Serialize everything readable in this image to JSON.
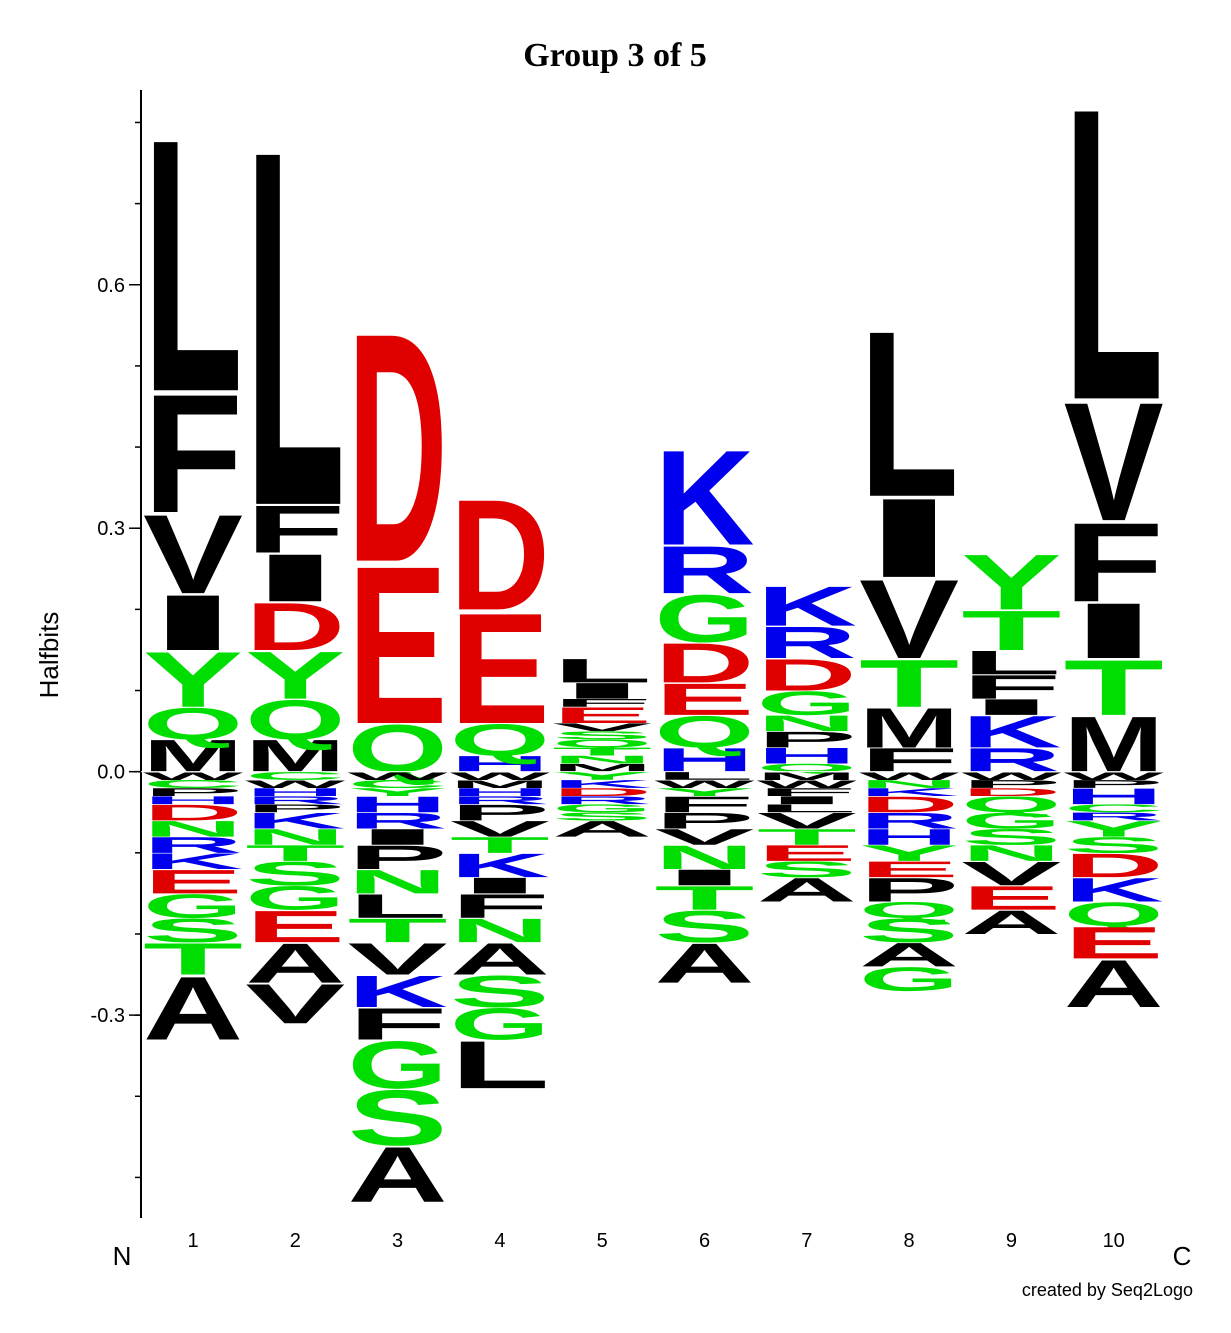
{
  "chart_data": {
    "type": "sequence-logo",
    "title": "Group 3 of 5",
    "ylabel": "Halfbits",
    "ylim": [
      -0.55,
      0.84
    ],
    "yticks": [
      {
        "value": -0.3,
        "label": "-0.3"
      },
      {
        "value": 0.0,
        "label": "0.0"
      },
      {
        "value": 0.3,
        "label": "0.3"
      },
      {
        "value": 0.6,
        "label": "0.6"
      }
    ],
    "yminor_step": 0.1,
    "n_label": "N",
    "c_label": "C",
    "credit": "created by Seq2Logo",
    "colors": {
      "hydrophobic": "#000000",
      "polar": "#00dd00",
      "acidic": "#e00000",
      "basic": "#0000ee"
    },
    "color_groups": {
      "hydrophobic": [
        "A",
        "V",
        "L",
        "I",
        "M",
        "F",
        "W",
        "P"
      ],
      "polar": [
        "G",
        "S",
        "T",
        "Y",
        "C",
        "N",
        "Q"
      ],
      "acidic": [
        "D",
        "E"
      ],
      "basic": [
        "K",
        "R",
        "H"
      ]
    },
    "positions": [
      {
        "label": "1",
        "pos": [
          [
            "M",
            0.04
          ],
          [
            "Q",
            0.04
          ],
          [
            "Y",
            0.07
          ],
          [
            "I",
            0.07
          ],
          [
            "V",
            0.1
          ],
          [
            "F",
            0.15
          ],
          [
            "L",
            0.32
          ]
        ],
        "neg": [
          [
            "W",
            0.01
          ],
          [
            "C",
            0.01
          ],
          [
            "P",
            0.01
          ],
          [
            "H",
            0.01
          ],
          [
            "D",
            0.02
          ],
          [
            "N",
            0.02
          ],
          [
            "R",
            0.02
          ],
          [
            "K",
            0.02
          ],
          [
            "E",
            0.03
          ],
          [
            "G",
            0.03
          ],
          [
            "S",
            0.03
          ],
          [
            "T",
            0.04
          ],
          [
            "A",
            0.08
          ]
        ]
      },
      {
        "label": "2",
        "pos": [
          [
            "M",
            0.04
          ],
          [
            "Q",
            0.05
          ],
          [
            "Y",
            0.06
          ],
          [
            "D",
            0.06
          ],
          [
            "I",
            0.06
          ],
          [
            "F",
            0.06
          ],
          [
            "L",
            0.45
          ]
        ],
        "neg": [
          [
            "C",
            0.01
          ],
          [
            "W",
            0.01
          ],
          [
            "H",
            0.01
          ],
          [
            "R",
            0.01
          ],
          [
            "P",
            0.01
          ],
          [
            "K",
            0.02
          ],
          [
            "N",
            0.02
          ],
          [
            "T",
            0.02
          ],
          [
            "S",
            0.03
          ],
          [
            "G",
            0.03
          ],
          [
            "E",
            0.04
          ],
          [
            "A",
            0.05
          ],
          [
            "V",
            0.05
          ]
        ]
      },
      {
        "label": "3",
        "pos": [
          [
            "Q",
            0.06
          ],
          [
            "E",
            0.2
          ],
          [
            "D",
            0.29
          ]
        ],
        "neg": [
          [
            "W",
            0.01
          ],
          [
            "C",
            0.01
          ],
          [
            "Y",
            0.01
          ],
          [
            "H",
            0.02
          ],
          [
            "R",
            0.02
          ],
          [
            "I",
            0.02
          ],
          [
            "P",
            0.03
          ],
          [
            "N",
            0.03
          ],
          [
            "L",
            0.03
          ],
          [
            "T",
            0.03
          ],
          [
            "V",
            0.04
          ],
          [
            "K",
            0.04
          ],
          [
            "F",
            0.04
          ],
          [
            "G",
            0.06
          ],
          [
            "S",
            0.07
          ],
          [
            "A",
            0.07
          ]
        ]
      },
      {
        "label": "4",
        "pos": [
          [
            "H",
            0.02
          ],
          [
            "Q",
            0.04
          ],
          [
            "E",
            0.14
          ],
          [
            "D",
            0.14
          ]
        ],
        "neg": [
          [
            "W",
            0.01
          ],
          [
            "M",
            0.01
          ],
          [
            "H",
            0.01
          ],
          [
            "R",
            0.01
          ],
          [
            "P",
            0.02
          ],
          [
            "V",
            0.02
          ],
          [
            "T",
            0.02
          ],
          [
            "K",
            0.03
          ],
          [
            "I",
            0.02
          ],
          [
            "F",
            0.03
          ],
          [
            "N",
            0.03
          ],
          [
            "A",
            0.04
          ],
          [
            "S",
            0.04
          ],
          [
            "G",
            0.04
          ],
          [
            "L",
            0.06
          ]
        ]
      },
      {
        "label": "5",
        "pos": [
          [
            "M",
            0.01
          ],
          [
            "N",
            0.01
          ],
          [
            "T",
            0.01
          ],
          [
            "Q",
            0.01
          ],
          [
            "S",
            0.01
          ],
          [
            "V",
            0.01
          ],
          [
            "E",
            0.02
          ],
          [
            "F",
            0.01
          ],
          [
            "I",
            0.02
          ],
          [
            "L",
            0.03
          ]
        ],
        "neg": [
          [
            "Y",
            0.01
          ],
          [
            "K",
            0.01
          ],
          [
            "D",
            0.01
          ],
          [
            "R",
            0.01
          ],
          [
            "G",
            0.01
          ],
          [
            "S",
            0.01
          ],
          [
            "A",
            0.02
          ]
        ]
      },
      {
        "label": "6",
        "pos": [
          [
            "H",
            0.03
          ],
          [
            "Q",
            0.04
          ],
          [
            "E",
            0.04
          ],
          [
            "D",
            0.05
          ],
          [
            "G",
            0.06
          ],
          [
            "R",
            0.06
          ],
          [
            "K",
            0.12
          ]
        ],
        "neg": [
          [
            "L",
            0.01
          ],
          [
            "W",
            0.01
          ],
          [
            "Y",
            0.01
          ],
          [
            "F",
            0.02
          ],
          [
            "P",
            0.02
          ],
          [
            "V",
            0.02
          ],
          [
            "N",
            0.03
          ],
          [
            "I",
            0.02
          ],
          [
            "T",
            0.03
          ],
          [
            "S",
            0.04
          ],
          [
            "A",
            0.05
          ]
        ]
      },
      {
        "label": "7",
        "pos": [
          [
            "Q",
            0.01
          ],
          [
            "H",
            0.02
          ],
          [
            "P",
            0.02
          ],
          [
            "N",
            0.02
          ],
          [
            "G",
            0.03
          ],
          [
            "D",
            0.04
          ],
          [
            "R",
            0.04
          ],
          [
            "K",
            0.05
          ]
        ],
        "neg": [
          [
            "M",
            0.01
          ],
          [
            "W",
            0.01
          ],
          [
            "F",
            0.01
          ],
          [
            "I",
            0.01
          ],
          [
            "L",
            0.01
          ],
          [
            "V",
            0.02
          ],
          [
            "T",
            0.02
          ],
          [
            "E",
            0.02
          ],
          [
            "S",
            0.02
          ],
          [
            "A",
            0.03
          ]
        ]
      },
      {
        "label": "8",
        "pos": [
          [
            "F",
            0.03
          ],
          [
            "M",
            0.05
          ],
          [
            "T",
            0.06
          ],
          [
            "V",
            0.1
          ],
          [
            "I",
            0.1
          ],
          [
            "L",
            0.21
          ]
        ],
        "neg": [
          [
            "W",
            0.01
          ],
          [
            "N",
            0.01
          ],
          [
            "K",
            0.01
          ],
          [
            "D",
            0.02
          ],
          [
            "R",
            0.02
          ],
          [
            "H",
            0.02
          ],
          [
            "Y",
            0.02
          ],
          [
            "E",
            0.02
          ],
          [
            "P",
            0.03
          ],
          [
            "Q",
            0.02
          ],
          [
            "S",
            0.03
          ],
          [
            "A",
            0.03
          ],
          [
            "G",
            0.03
          ]
        ]
      },
      {
        "label": "9",
        "pos": [
          [
            "R",
            0.03
          ],
          [
            "K",
            0.04
          ],
          [
            "I",
            0.02
          ],
          [
            "F",
            0.03
          ],
          [
            "L",
            0.03
          ],
          [
            "T",
            0.05
          ],
          [
            "Y",
            0.07
          ]
        ],
        "neg": [
          [
            "W",
            0.01
          ],
          [
            "P",
            0.01
          ],
          [
            "D",
            0.01
          ],
          [
            "Q",
            0.02
          ],
          [
            "G",
            0.02
          ],
          [
            "S",
            0.02
          ],
          [
            "N",
            0.02
          ],
          [
            "V",
            0.03
          ],
          [
            "E",
            0.03
          ],
          [
            "A",
            0.03
          ]
        ]
      },
      {
        "label": "10",
        "pos": [
          [
            "M",
            0.07
          ],
          [
            "T",
            0.07
          ],
          [
            "I",
            0.07
          ],
          [
            "F",
            0.1
          ],
          [
            "V",
            0.15
          ],
          [
            "L",
            0.37
          ]
        ],
        "neg": [
          [
            "W",
            0.01
          ],
          [
            "P",
            0.01
          ],
          [
            "H",
            0.02
          ],
          [
            "C",
            0.01
          ],
          [
            "R",
            0.01
          ],
          [
            "Y",
            0.02
          ],
          [
            "S",
            0.02
          ],
          [
            "D",
            0.03
          ],
          [
            "K",
            0.03
          ],
          [
            "Q",
            0.03
          ],
          [
            "E",
            0.04
          ],
          [
            "A",
            0.06
          ]
        ]
      }
    ]
  }
}
